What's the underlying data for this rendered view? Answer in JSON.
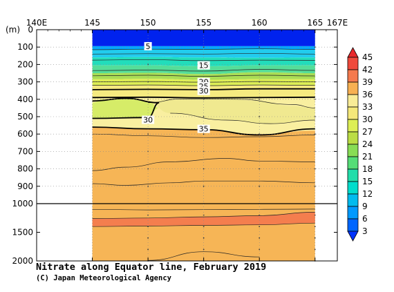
{
  "chart_data": {
    "type": "heatmap",
    "title": "Nitrate along Equator line, February 2019",
    "credit": "(C) Japan Meteorological Agency",
    "ylabel": "(m)",
    "xlim": [
      140,
      167
    ],
    "x_ticks": [
      {
        "value": 140,
        "label": "140E"
      },
      {
        "value": 145,
        "label": "145"
      },
      {
        "value": 150,
        "label": "150"
      },
      {
        "value": 155,
        "label": "155"
      },
      {
        "value": 160,
        "label": "160"
      },
      {
        "value": 165,
        "label": "165"
      },
      {
        "value": 167,
        "label": "167E"
      }
    ],
    "y_ticks_upper": [
      0,
      100,
      200,
      300,
      400,
      500,
      600,
      700,
      800,
      900,
      1000
    ],
    "y_ticks_lower": [
      1500,
      2000
    ],
    "ylim_upper": [
      0,
      1000
    ],
    "ylim_lower": [
      1000,
      2000
    ],
    "data_lon_range": [
      145,
      165
    ],
    "station_lons": [
      150,
      155,
      160,
      165
    ],
    "station_depths": [
      100,
      200,
      300,
      400,
      500,
      600,
      700,
      800,
      900,
      1000,
      1200,
      1400,
      1600,
      1800,
      2000
    ],
    "colorbar_levels": [
      "3",
      "6",
      "9",
      "12",
      "15",
      "18",
      "21",
      "24",
      "27",
      "30",
      "33",
      "36",
      "39",
      "42",
      "45"
    ],
    "colorbar_colors": [
      "#0033ff",
      "#0066ff",
      "#0099ff",
      "#00bbee",
      "#00ddcc",
      "#22ddaa",
      "#55dd77",
      "#88dd55",
      "#bbdd44",
      "#ddee55",
      "#f5e87a",
      "#f9ec97",
      "#f7b052",
      "#f47a4e",
      "#ef4a3c",
      "#e8282b"
    ],
    "bands_upper": [
      {
        "to_depth": 0,
        "profile": [
          0,
          0,
          0,
          0,
          0
        ],
        "color": "#0022ee"
      },
      {
        "to_depth": 1,
        "profile": [
          95,
          95,
          95,
          95,
          95
        ],
        "color": "#0022ee"
      },
      {
        "to_depth": 1,
        "profile": [
          115,
          112,
          112,
          110,
          115
        ],
        "color": "#00a8ff"
      },
      {
        "to_depth": 1,
        "profile": [
          160,
          158,
          160,
          162,
          160
        ],
        "color": "#22ccee"
      },
      {
        "to_depth": 1,
        "profile": [
          205,
          205,
          210,
          205,
          205
        ],
        "color": "#22ddbb"
      },
      {
        "to_depth": 1,
        "profile": [
          250,
          248,
          255,
          245,
          250
        ],
        "color": "#55dd99"
      },
      {
        "to_depth": 1,
        "profile": [
          285,
          283,
          288,
          285,
          285
        ],
        "color": "#aadd55"
      },
      {
        "to_depth": 1,
        "profile": [
          320,
          318,
          322,
          320,
          320
        ],
        "color": "#ddee55"
      },
      {
        "to_depth": 1,
        "profile": [
          390,
          392,
          395,
          392,
          390
        ],
        "color": "#f5ea80"
      },
      {
        "to_depth": 1,
        "profile": [
          560,
          570,
          575,
          600,
          580
        ],
        "color": "#f9efa0"
      },
      {
        "to_depth": 1,
        "profile": [
          1000,
          1000,
          1000,
          1000,
          1000
        ],
        "color": "#f6b556"
      }
    ],
    "fresh_patch": {
      "color": "#d6ec68",
      "points": [
        [
          145,
          420
        ],
        [
          146,
          400
        ],
        [
          148,
          395
        ],
        [
          150,
          410
        ],
        [
          151,
          450
        ],
        [
          150,
          500
        ],
        [
          148,
          508
        ],
        [
          145,
          510
        ]
      ]
    },
    "mid_patch": {
      "color": "#f0e990",
      "points": [
        [
          150,
          420
        ],
        [
          152,
          400
        ],
        [
          156,
          390
        ],
        [
          160,
          410
        ],
        [
          163,
          440
        ],
        [
          165,
          450
        ],
        [
          165,
          520
        ],
        [
          161,
          540
        ],
        [
          157,
          520
        ],
        [
          152,
          480
        ]
      ]
    },
    "deep_band_lower": {
      "color": "#f47e4e",
      "top": [
        1260,
        1250,
        1230,
        1210,
        1150
      ],
      "bottom": [
        1400,
        1390,
        1380,
        1370,
        1340
      ]
    },
    "contour_labels": [
      {
        "lon": 150,
        "depth": 95,
        "text": "5"
      },
      {
        "lon": 155,
        "depth": 205,
        "text": "15"
      },
      {
        "lon": 155,
        "depth": 300,
        "text": "20"
      },
      {
        "lon": 155,
        "depth": 325,
        "text": "25"
      },
      {
        "lon": 155,
        "depth": 352,
        "text": "30"
      },
      {
        "lon": 150,
        "depth": 518,
        "text": "30"
      },
      {
        "lon": 155,
        "depth": 570,
        "text": "35"
      }
    ],
    "bold_contours": [
      [
        [
          145,
          345
        ],
        [
          150,
          343
        ],
        [
          155,
          345
        ],
        [
          160,
          340
        ],
        [
          165,
          340
        ]
      ],
      [
        [
          145,
          390
        ],
        [
          150,
          388
        ],
        [
          155,
          392
        ],
        [
          160,
          390
        ],
        [
          165,
          388
        ]
      ],
      [
        [
          145,
          410
        ],
        [
          148,
          395
        ],
        [
          151,
          420
        ],
        [
          150,
          505
        ],
        [
          145,
          510
        ]
      ],
      [
        [
          145,
          560
        ],
        [
          150,
          570
        ],
        [
          155,
          575
        ],
        [
          160,
          605
        ],
        [
          165,
          570
        ]
      ]
    ],
    "thin_contours": [
      [
        [
          145,
          115
        ],
        [
          150,
          112
        ],
        [
          155,
          113
        ],
        [
          160,
          110
        ],
        [
          165,
          114
        ]
      ],
      [
        [
          145,
          140
        ],
        [
          150,
          138
        ],
        [
          155,
          140
        ],
        [
          160,
          136
        ],
        [
          165,
          140
        ]
      ],
      [
        [
          145,
          175
        ],
        [
          150,
          172
        ],
        [
          155,
          178
        ],
        [
          160,
          175
        ],
        [
          165,
          176
        ]
      ],
      [
        [
          145,
          235
        ],
        [
          150,
          232
        ],
        [
          155,
          238
        ],
        [
          160,
          228
        ],
        [
          165,
          234
        ]
      ],
      [
        [
          145,
          265
        ],
        [
          150,
          262
        ],
        [
          155,
          268
        ],
        [
          160,
          262
        ],
        [
          165,
          266
        ]
      ],
      [
        [
          145,
          300
        ],
        [
          150,
          298
        ],
        [
          155,
          302
        ],
        [
          160,
          298
        ],
        [
          165,
          300
        ]
      ],
      [
        [
          145,
          320
        ],
        [
          150,
          318
        ],
        [
          155,
          322
        ],
        [
          160,
          318
        ],
        [
          165,
          320
        ]
      ],
      [
        [
          150,
          420
        ],
        [
          153,
          398
        ],
        [
          158,
          400
        ],
        [
          163,
          430
        ],
        [
          165,
          450
        ]
      ],
      [
        [
          152,
          480
        ],
        [
          157,
          520
        ],
        [
          161,
          540
        ],
        [
          165,
          520
        ]
      ],
      [
        [
          145,
          600
        ],
        [
          150,
          610
        ],
        [
          155,
          620
        ],
        [
          160,
          615
        ],
        [
          165,
          605
        ]
      ],
      [
        [
          145,
          810
        ],
        [
          148,
          790
        ],
        [
          152,
          760
        ],
        [
          157,
          740
        ],
        [
          160,
          755
        ],
        [
          165,
          760
        ]
      ],
      [
        [
          145,
          885
        ],
        [
          148,
          895
        ],
        [
          152,
          880
        ],
        [
          155,
          870
        ],
        [
          160,
          870
        ],
        [
          165,
          880
        ]
      ]
    ],
    "lower_contours": [
      [
        [
          145,
          1100
        ],
        [
          150,
          1110
        ],
        [
          155,
          1105
        ],
        [
          160,
          1100
        ],
        [
          165,
          1095
        ]
      ],
      [
        [
          145,
          1260
        ],
        [
          150,
          1250
        ],
        [
          155,
          1230
        ],
        [
          160,
          1210
        ],
        [
          165,
          1150
        ]
      ],
      [
        [
          145,
          1400
        ],
        [
          150,
          1390
        ],
        [
          155,
          1380
        ],
        [
          160,
          1370
        ],
        [
          165,
          1340
        ]
      ],
      [
        [
          150,
          1990
        ],
        [
          155,
          1840
        ],
        [
          160,
          1930
        ]
      ]
    ]
  }
}
